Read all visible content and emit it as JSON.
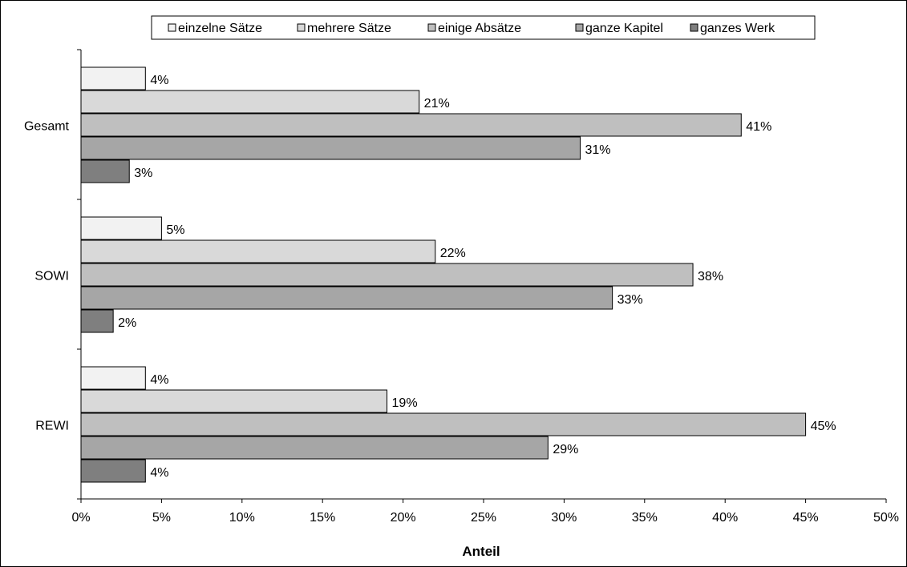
{
  "chart_data": {
    "type": "bar",
    "orientation": "horizontal",
    "categories": [
      "Gesamt",
      "SOWI",
      "REWI"
    ],
    "series": [
      {
        "name": "einzelne Sätze",
        "values": [
          4,
          5,
          4
        ],
        "labels": [
          "4%",
          "5%",
          "4%"
        ],
        "color": "#f2f2f2"
      },
      {
        "name": "mehrere Sätze",
        "values": [
          21,
          22,
          19
        ],
        "labels": [
          "21%",
          "22%",
          "19%"
        ],
        "color": "#d9d9d9"
      },
      {
        "name": "einige Absätze",
        "values": [
          41,
          38,
          45
        ],
        "labels": [
          "41%",
          "38%",
          "45%"
        ],
        "color": "#bfbfbf"
      },
      {
        "name": "ganze Kapitel",
        "values": [
          31,
          33,
          29
        ],
        "labels": [
          "31%",
          "33%",
          "29%"
        ],
        "color": "#a6a6a6"
      },
      {
        "name": "ganzes Werk",
        "values": [
          3,
          2,
          4
        ],
        "labels": [
          "3%",
          "2%",
          "4%"
        ],
        "color": "#7f7f7f"
      }
    ],
    "xlabel": "Anteil",
    "xlim": [
      0,
      50
    ],
    "x_ticks": [
      "0%",
      "5%",
      "10%",
      "15%",
      "20%",
      "25%",
      "30%",
      "35%",
      "40%",
      "45%",
      "50%"
    ],
    "legend_position": "top",
    "grid": false
  }
}
